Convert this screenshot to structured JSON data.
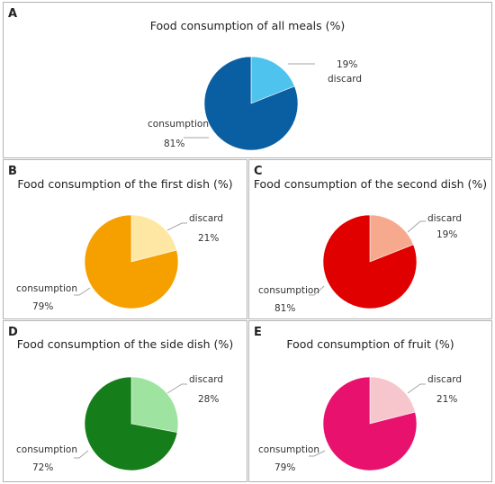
{
  "chart_data": [
    {
      "id": "A",
      "type": "pie",
      "panel_label": "A",
      "title": "Food consumption of all meals (%)",
      "labels": [
        "discard",
        "consumption"
      ],
      "values": [
        19,
        81
      ],
      "value_labels": [
        "19%",
        "81%"
      ],
      "colors": [
        "#4dc3ee",
        "#0a5fa3"
      ]
    },
    {
      "id": "B",
      "type": "pie",
      "panel_label": "B",
      "title": "Food consumption of the first dish (%)",
      "labels": [
        "discard",
        "consumption"
      ],
      "values": [
        21,
        79
      ],
      "value_labels": [
        "21%",
        "79%"
      ],
      "colors": [
        "#fde7a3",
        "#f6a000"
      ]
    },
    {
      "id": "C",
      "type": "pie",
      "panel_label": "C",
      "title": "Food consumption of the second dish (%)",
      "labels": [
        "discard",
        "consumption"
      ],
      "values": [
        19,
        81
      ],
      "value_labels": [
        "19%",
        "81%"
      ],
      "colors": [
        "#f6a98c",
        "#e00000"
      ]
    },
    {
      "id": "D",
      "type": "pie",
      "panel_label": "D",
      "title": "Food consumption of the side dish (%)",
      "labels": [
        "discard",
        "consumption"
      ],
      "values": [
        28,
        72
      ],
      "value_labels": [
        "28%",
        "72%"
      ],
      "colors": [
        "#9fe3a0",
        "#157d19"
      ]
    },
    {
      "id": "E",
      "type": "pie",
      "panel_label": "E",
      "title": "Food consumption of fruit (%)",
      "labels": [
        "discard",
        "consumption"
      ],
      "values": [
        21,
        79
      ],
      "value_labels": [
        "21%",
        "79%"
      ],
      "colors": [
        "#f7c5cc",
        "#e8126e"
      ]
    }
  ]
}
